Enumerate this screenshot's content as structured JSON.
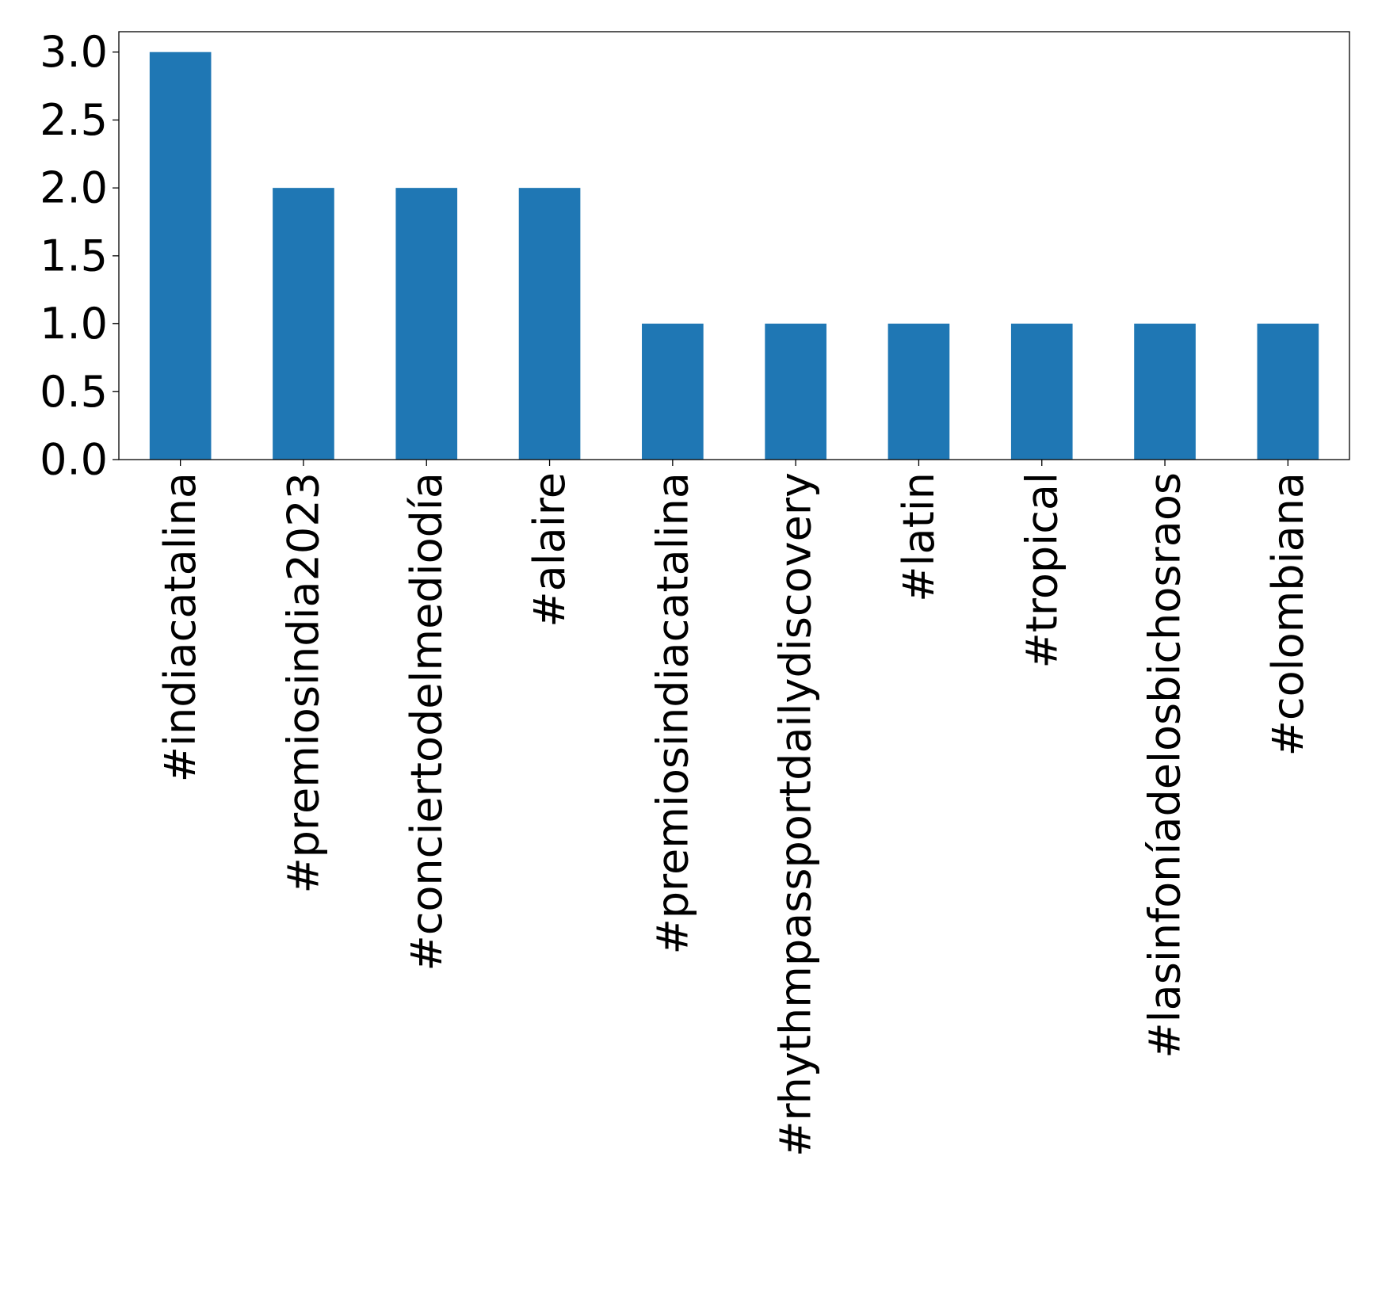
{
  "chart_data": {
    "type": "bar",
    "title": "",
    "xlabel": "",
    "ylabel": "",
    "categories": [
      "#indiacatalina",
      "#premiosindia2023",
      "#conciertodelmediodía",
      "#alaire",
      "#premiosindiacatalina",
      "#rhythmpassportdailydiscovery",
      "#latin",
      "#tropical",
      "#lasinfoníadelosbichosraos",
      "#colombiana"
    ],
    "values": [
      3,
      2,
      2,
      2,
      1,
      1,
      1,
      1,
      1,
      1
    ],
    "ylim": [
      0,
      3.15
    ],
    "yticks": [
      "0.0",
      "0.5",
      "1.0",
      "1.5",
      "2.0",
      "2.5",
      "3.0"
    ],
    "grid": false,
    "legend": "none",
    "bar_color": "#1f77b4"
  }
}
